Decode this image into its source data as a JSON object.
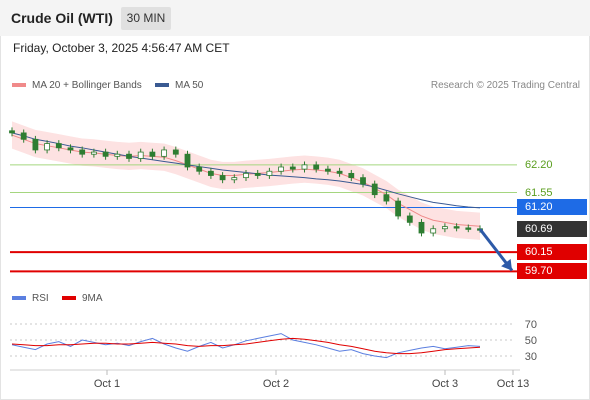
{
  "header": {
    "title": "Crude Oil (WTI)",
    "timeframe": "30 MIN",
    "datetime": "Friday, October 3, 2025 4:56:47 AM CET"
  },
  "legend": {
    "ma20_label": "MA 20 + Bollinger Bands",
    "ma50_label": "MA 50",
    "research": "Research © 2025 Trading Central",
    "rsi_label": "RSI",
    "rsi_ma_label": "9MA"
  },
  "colors": {
    "ma20": "#f08a8a",
    "ma50": "#3a5a92",
    "bollinger_fill": "#fde2e2",
    "candle": "#2e7d32",
    "resistance": "#a5d67f",
    "pivot": "#1e6be6",
    "support": "#e00000",
    "current": "#333333",
    "rsi": "#5b7fe0",
    "rsi_ma": "#e00000",
    "arrow": "#2d5aa8"
  },
  "levels": [
    {
      "value": "62.20",
      "kind": "resistance"
    },
    {
      "value": "61.55",
      "kind": "resistance"
    },
    {
      "value": "61.20",
      "kind": "pivot"
    },
    {
      "value": "60.69",
      "kind": "current"
    },
    {
      "value": "60.15",
      "kind": "support"
    },
    {
      "value": "59.70",
      "kind": "support"
    }
  ],
  "x_axis": {
    "labels": [
      "Oct 1",
      "Oct 2",
      "Oct 3",
      "Oct 13"
    ]
  },
  "rsi_axis": {
    "ticks": [
      "70",
      "50",
      "30"
    ]
  },
  "chart_data": {
    "type": "line",
    "title": "Crude Oil (WTI)",
    "series": [
      {
        "name": "Price",
        "values": [
          62.95,
          62.8,
          62.55,
          62.7,
          62.6,
          62.55,
          62.45,
          62.5,
          62.4,
          62.45,
          62.35,
          62.5,
          62.4,
          62.55,
          62.45,
          62.15,
          62.05,
          61.95,
          61.85,
          61.9,
          62.0,
          61.95,
          62.05,
          62.15,
          62.1,
          62.2,
          62.1,
          62.05,
          62.0,
          61.9,
          61.75,
          61.5,
          61.35,
          61.0,
          60.85,
          60.6,
          60.7,
          60.75,
          60.72,
          60.7,
          60.69
        ]
      },
      {
        "name": "MA 20",
        "values": [
          62.9,
          62.8,
          62.7,
          62.65,
          62.6,
          62.55,
          62.5,
          62.48,
          62.45,
          62.42,
          62.4,
          62.42,
          62.4,
          62.38,
          62.3,
          62.2,
          62.1,
          62.0,
          61.95,
          61.95,
          61.98,
          62.0,
          62.02,
          62.05,
          62.08,
          62.1,
          62.08,
          62.05,
          62.0,
          61.9,
          61.8,
          61.65,
          61.5,
          61.3,
          61.15,
          61.0,
          60.9,
          60.85,
          60.8,
          60.78,
          60.76
        ]
      },
      {
        "name": "MA 50",
        "values": [
          62.95,
          62.88,
          62.8,
          62.75,
          62.7,
          62.64,
          62.6,
          62.55,
          62.5,
          62.45,
          62.4,
          62.36,
          62.32,
          62.28,
          62.24,
          62.2,
          62.16,
          62.12,
          62.08,
          62.05,
          62.02,
          61.99,
          61.96,
          61.94,
          61.92,
          61.9,
          61.87,
          61.85,
          61.82,
          61.78,
          61.74,
          61.68,
          61.6,
          61.52,
          61.45,
          61.38,
          61.32,
          61.28,
          61.24,
          61.21,
          61.19
        ]
      },
      {
        "name": "RSI",
        "values": [
          44,
          41,
          38,
          45,
          48,
          42,
          50,
          47,
          44,
          46,
          43,
          48,
          52,
          45,
          40,
          36,
          42,
          47,
          40,
          44,
          49,
          52,
          55,
          58,
          50,
          47,
          44,
          40,
          36,
          38,
          33,
          30,
          28,
          34,
          37,
          40,
          42,
          39,
          41,
          43,
          42
        ]
      },
      {
        "name": "9MA",
        "values": [
          45,
          44,
          43,
          43,
          44,
          44,
          45,
          46,
          46,
          45,
          45,
          46,
          47,
          46,
          45,
          43,
          42,
          43,
          43,
          44,
          45,
          47,
          49,
          51,
          52,
          51,
          49,
          47,
          44,
          42,
          39,
          36,
          34,
          33,
          33,
          34,
          36,
          38,
          39,
          40,
          41
        ]
      }
    ],
    "ylim": [
      59.45,
      63.3
    ],
    "rsi_ylim": [
      15,
      85
    ],
    "xlabel": "",
    "ylabel": ""
  }
}
